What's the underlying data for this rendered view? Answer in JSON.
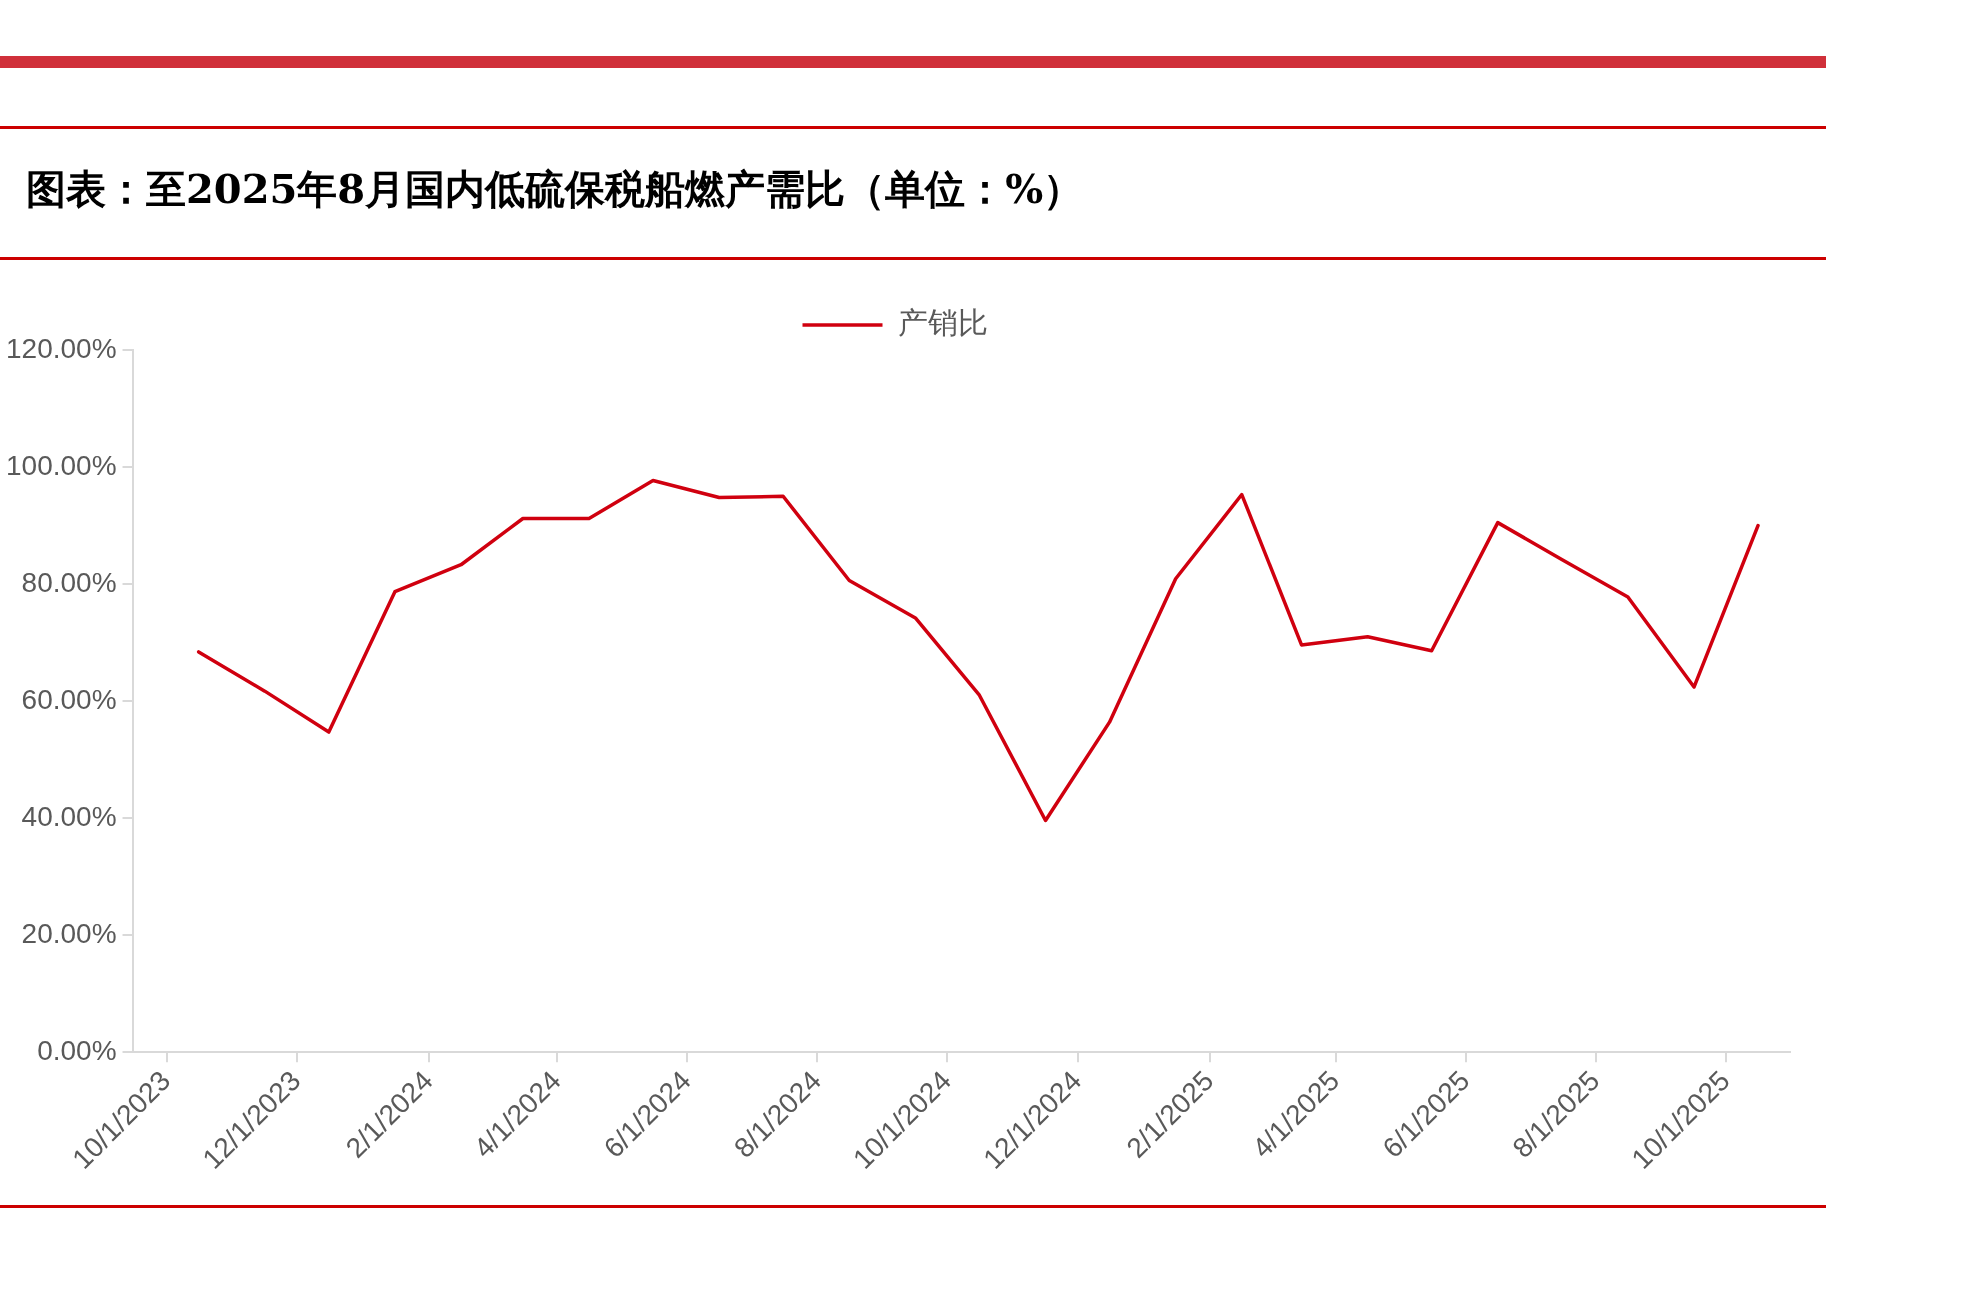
{
  "chart_data": {
    "type": "line",
    "title": "图表：至2025年8月国内低硫保税船燃产需比（单位：%）",
    "x": [
      "2023-10-16",
      "2023-11-16",
      "2023-12-16",
      "2024-01-16",
      "2024-02-16",
      "2024-03-16",
      "2024-04-16",
      "2024-05-16",
      "2024-06-16",
      "2024-07-16",
      "2024-08-16",
      "2024-09-16",
      "2024-10-16",
      "2024-11-16",
      "2024-12-16",
      "2025-01-16",
      "2025-02-16",
      "2025-03-16",
      "2025-04-16",
      "2025-05-16",
      "2025-06-16",
      "2025-07-16",
      "2025-08-16",
      "2025-09-16",
      "2025-10-16"
    ],
    "series": [
      {
        "name": "产销比",
        "color": "#d0000f",
        "values": [
          68.4,
          61.7,
          54.7,
          78.7,
          83.3,
          91.2,
          91.2,
          97.7,
          94.8,
          95.0,
          80.6,
          74.2,
          61.0,
          39.6,
          56.4,
          80.9,
          95.3,
          69.6,
          71.0,
          68.6,
          90.5,
          84.2,
          77.8,
          62.4,
          90.0
        ]
      }
    ],
    "xlim": [
      "2023-09-15",
      "2025-10-31"
    ],
    "xticks": [
      {
        "value": "2023-10-01",
        "label": "10/1/2023"
      },
      {
        "value": "2023-12-01",
        "label": "12/1/2023"
      },
      {
        "value": "2024-02-01",
        "label": "2/1/2024"
      },
      {
        "value": "2024-04-01",
        "label": "4/1/2024"
      },
      {
        "value": "2024-06-01",
        "label": "6/1/2024"
      },
      {
        "value": "2024-08-01",
        "label": "8/1/2024"
      },
      {
        "value": "2024-10-01",
        "label": "10/1/2024"
      },
      {
        "value": "2024-12-01",
        "label": "12/1/2024"
      },
      {
        "value": "2025-02-01",
        "label": "2/1/2025"
      },
      {
        "value": "2025-04-01",
        "label": "4/1/2025"
      },
      {
        "value": "2025-06-01",
        "label": "6/1/2025"
      },
      {
        "value": "2025-08-01",
        "label": "8/1/2025"
      },
      {
        "value": "2025-10-01",
        "label": "10/1/2025"
      }
    ],
    "ylim": [
      0,
      120
    ],
    "yticks": [
      {
        "value": 0,
        "label": "0.00%"
      },
      {
        "value": 20,
        "label": "20.00%"
      },
      {
        "value": 40,
        "label": "40.00%"
      },
      {
        "value": 60,
        "label": "60.00%"
      },
      {
        "value": 80,
        "label": "80.00%"
      },
      {
        "value": 100,
        "label": "100.00%"
      },
      {
        "value": 120,
        "label": "120.00%"
      }
    ],
    "grid": false,
    "legend": "top",
    "marker": "none",
    "line_style": "solid"
  }
}
